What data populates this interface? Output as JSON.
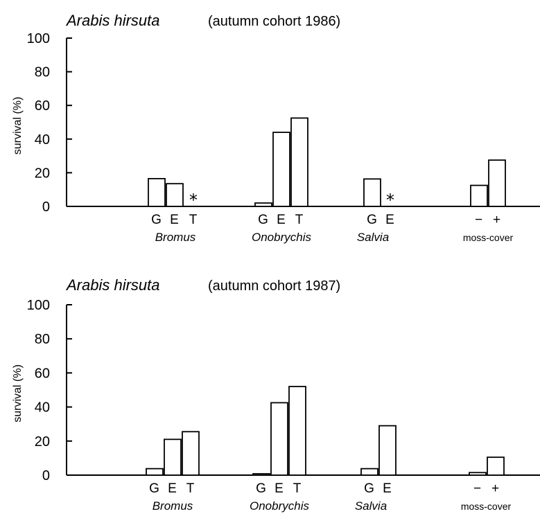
{
  "chart_data": [
    {
      "type": "bar",
      "title_species": "Arabis hirsuta",
      "title_cohort": "(autumn cohort 1986)",
      "ylabel": "survival (%)",
      "ylim": [
        0,
        100
      ],
      "yticks": [
        "0",
        "20",
        "40",
        "60",
        "80",
        "100"
      ],
      "groups": [
        {
          "name": "Bromus",
          "italic": true,
          "bars": [
            {
              "label": "G",
              "value": 16.5
            },
            {
              "label": "E",
              "value": 13.5
            },
            {
              "label": "T",
              "value": 0,
              "marker": "*"
            }
          ]
        },
        {
          "name": "Onobrychis",
          "italic": true,
          "bars": [
            {
              "label": "G",
              "value": 2
            },
            {
              "label": "E",
              "value": 44
            },
            {
              "label": "T",
              "value": 52.5
            }
          ]
        },
        {
          "name": "Salvia",
          "italic": true,
          "bars": [
            {
              "label": "G",
              "value": 16.3
            },
            {
              "label": "E",
              "value": 0,
              "marker": "*"
            }
          ]
        },
        {
          "name": "moss-cover",
          "italic": false,
          "bars": [
            {
              "label": "−",
              "value": 12.5
            },
            {
              "label": "+",
              "value": 27.5
            }
          ]
        }
      ]
    },
    {
      "type": "bar",
      "title_species": "Arabis hirsuta",
      "title_cohort": "(autumn cohort 1987)",
      "ylabel": "survival (%)",
      "ylim": [
        0,
        100
      ],
      "yticks": [
        "0",
        "20",
        "40",
        "60",
        "80",
        "100"
      ],
      "groups": [
        {
          "name": "Bromus",
          "italic": true,
          "bars": [
            {
              "label": "G",
              "value": 3.8
            },
            {
              "label": "E",
              "value": 21
            },
            {
              "label": "T",
              "value": 25.5
            }
          ]
        },
        {
          "name": "Onobrychis",
          "italic": true,
          "bars": [
            {
              "label": "G",
              "value": 0.8
            },
            {
              "label": "E",
              "value": 42.5
            },
            {
              "label": "T",
              "value": 52
            }
          ]
        },
        {
          "name": "Salvia",
          "italic": true,
          "bars": [
            {
              "label": "G",
              "value": 3.8
            },
            {
              "label": "E",
              "value": 29
            }
          ]
        },
        {
          "name": "moss-cover",
          "italic": false,
          "bars": [
            {
              "label": "−",
              "value": 1.5
            },
            {
              "label": "+",
              "value": 10.5
            }
          ]
        }
      ]
    }
  ]
}
